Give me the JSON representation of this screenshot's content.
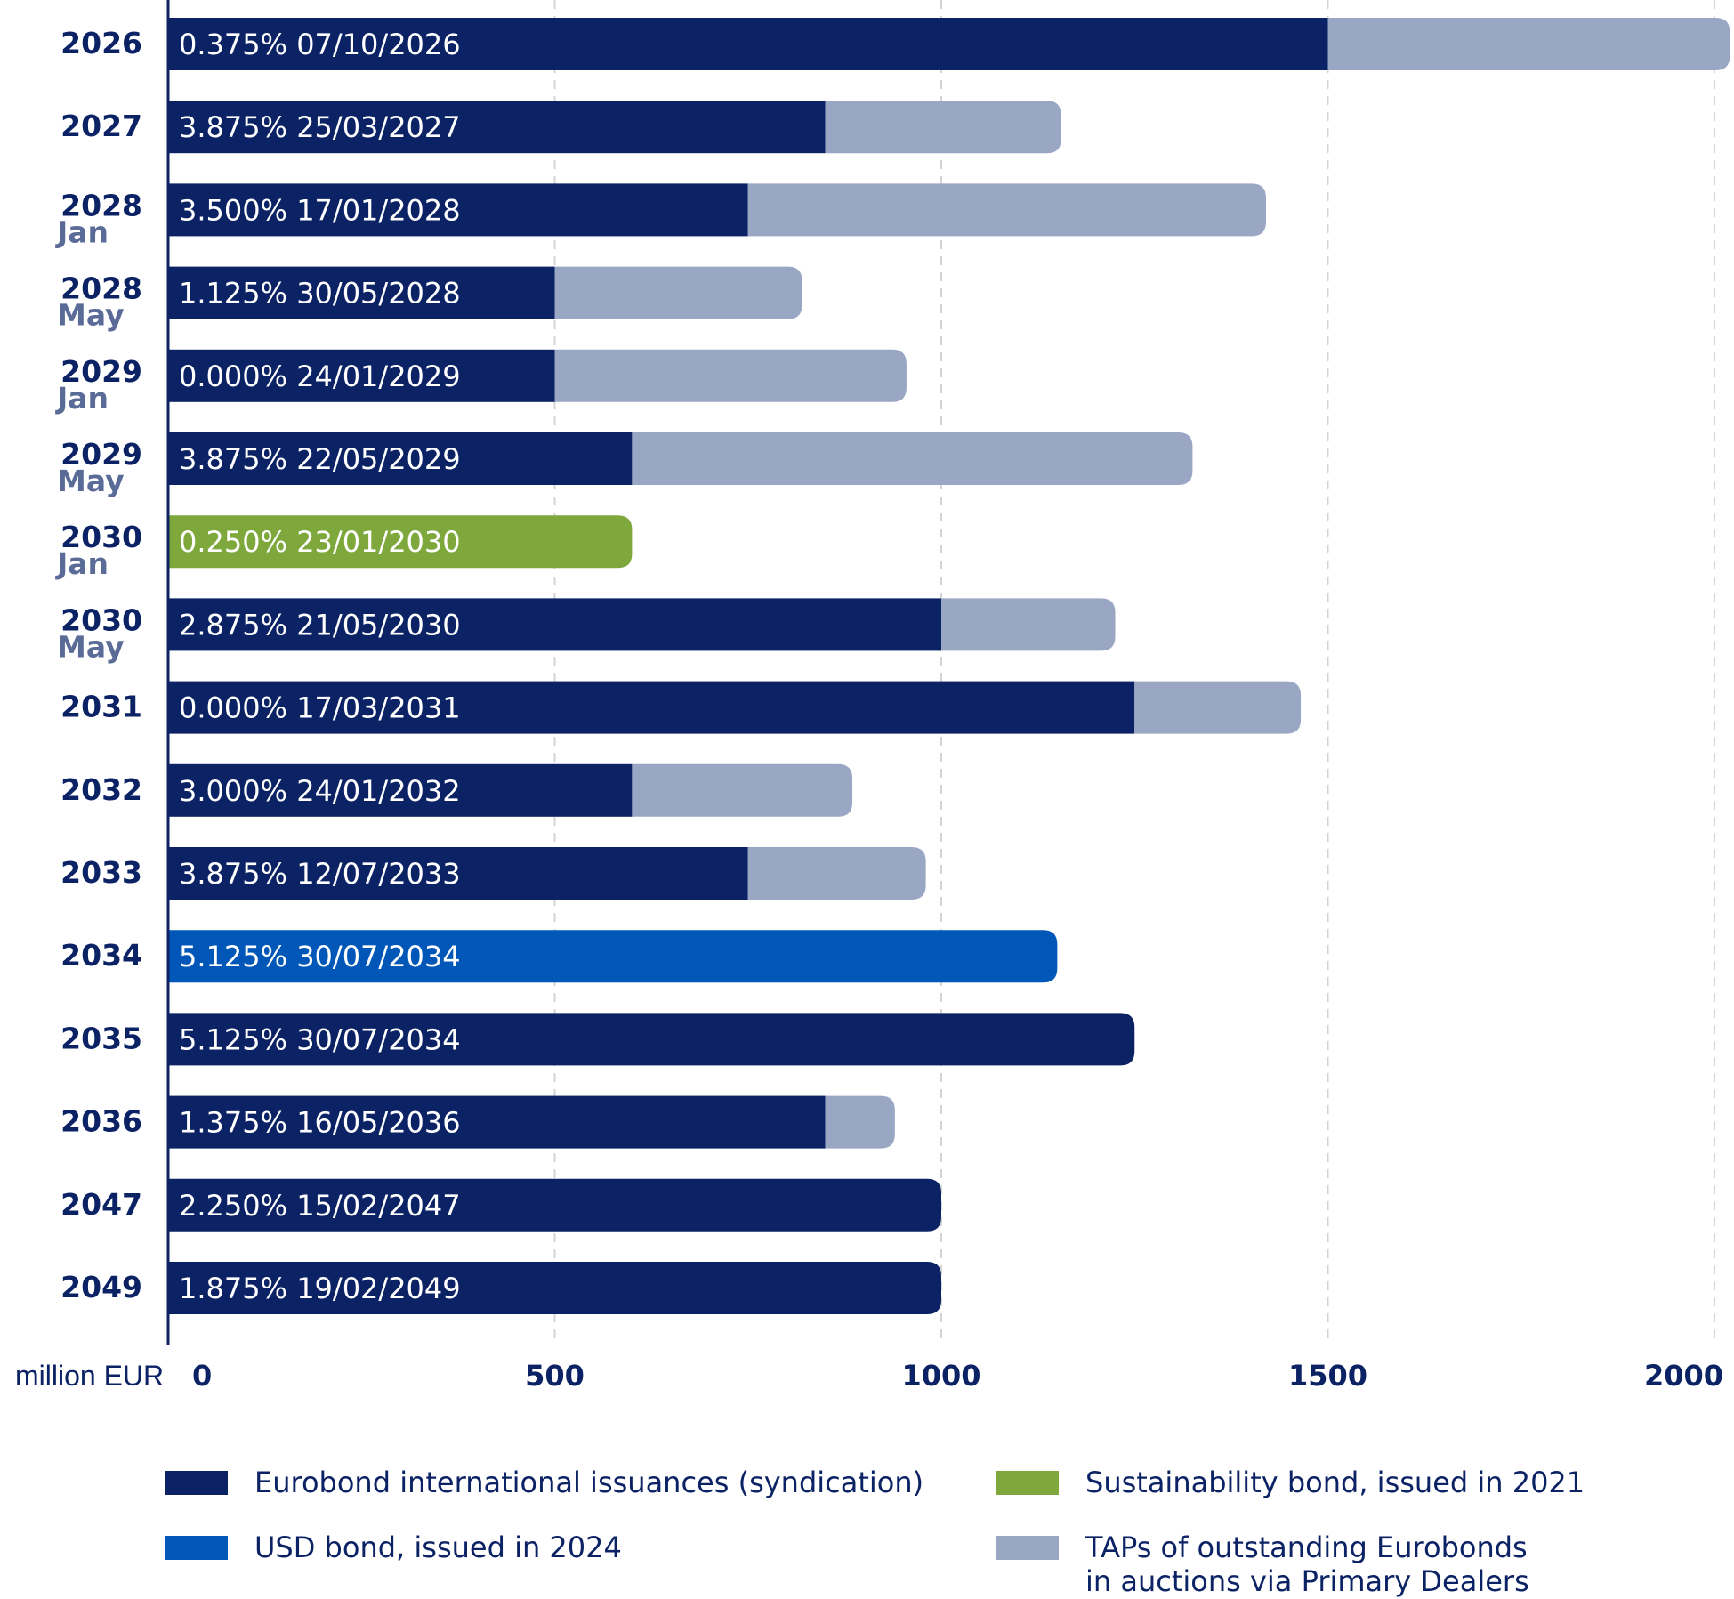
{
  "chart_data": {
    "type": "bar",
    "orientation": "horizontal",
    "stacked": true,
    "unit_label": "million EUR",
    "xlim": [
      0,
      2000
    ],
    "x_ticks": [
      "0",
      "500",
      "1000",
      "1500",
      "2000"
    ],
    "grid": "vertical dashed",
    "categories": [
      {
        "year": "2026",
        "sub": "",
        "label": "0.375% 07/10/2026"
      },
      {
        "year": "2027",
        "sub": "",
        "label": "3.875% 25/03/2027"
      },
      {
        "year": "2028",
        "sub": "Jan",
        "label": "3.500% 17/01/2028"
      },
      {
        "year": "2028",
        "sub": "May",
        "label": "1.125% 30/05/2028"
      },
      {
        "year": "2029",
        "sub": "Jan",
        "label": "0.000% 24/01/2029"
      },
      {
        "year": "2029",
        "sub": "May",
        "label": "3.875% 22/05/2029"
      },
      {
        "year": "2030",
        "sub": "Jan",
        "label": "0.250% 23/01/2030"
      },
      {
        "year": "2030",
        "sub": "May",
        "label": "2.875% 21/05/2030"
      },
      {
        "year": "2031",
        "sub": "",
        "label": "0.000% 17/03/2031"
      },
      {
        "year": "2032",
        "sub": "",
        "label": "3.000% 24/01/2032"
      },
      {
        "year": "2033",
        "sub": "",
        "label": "3.875% 12/07/2033"
      },
      {
        "year": "2034",
        "sub": "",
        "label": "5.125% 30/07/2034"
      },
      {
        "year": "2035",
        "sub": "",
        "label": "5.125% 30/07/2034"
      },
      {
        "year": "2036",
        "sub": "",
        "label": "1.375% 16/05/2036"
      },
      {
        "year": "2047",
        "sub": "",
        "label": "2.250% 15/02/2047"
      },
      {
        "year": "2049",
        "sub": "",
        "label": "1.875% 19/02/2049"
      }
    ],
    "series": [
      {
        "key": "syndication",
        "name": "Eurobond international issuances (syndication)",
        "color": "#0b2265",
        "values": [
          1500,
          850,
          750,
          500,
          500,
          600,
          0,
          1000,
          1250,
          600,
          750,
          0,
          1250,
          850,
          1000,
          1000
        ]
      },
      {
        "key": "sustainability",
        "name": "Sustainability bond, issued in 2021",
        "color": "#7ea83c",
        "values": [
          0,
          0,
          0,
          0,
          0,
          0,
          600,
          0,
          0,
          0,
          0,
          0,
          0,
          0,
          0,
          0
        ]
      },
      {
        "key": "usd",
        "name": "USD bond, issued in 2024",
        "color": "#0057b8",
        "values": [
          0,
          0,
          0,
          0,
          0,
          0,
          0,
          0,
          0,
          0,
          0,
          1150,
          0,
          0,
          0,
          0
        ]
      },
      {
        "key": "taps",
        "name": "TAPs of outstanding Eurobonds in auctions via Primary Dealers",
        "color": "#9aa7c4",
        "values": [
          520,
          305,
          670,
          320,
          455,
          725,
          0,
          225,
          215,
          285,
          230,
          0,
          0,
          90,
          0,
          0
        ]
      }
    ],
    "legend": {
      "placement": "bottom",
      "items": [
        {
          "lines": [
            "Eurobond international issuances (syndication)"
          ],
          "color": "#0b2265"
        },
        {
          "lines": [
            "Sustainability bond, issued in 2021"
          ],
          "color": "#7ea83c"
        },
        {
          "lines": [
            "USD bond, issued in 2024"
          ],
          "color": "#0057b8"
        },
        {
          "lines": [
            "TAPs of outstanding Eurobonds",
            "in auctions via Primary Dealers"
          ],
          "color": "#9aa7c4"
        }
      ]
    }
  }
}
